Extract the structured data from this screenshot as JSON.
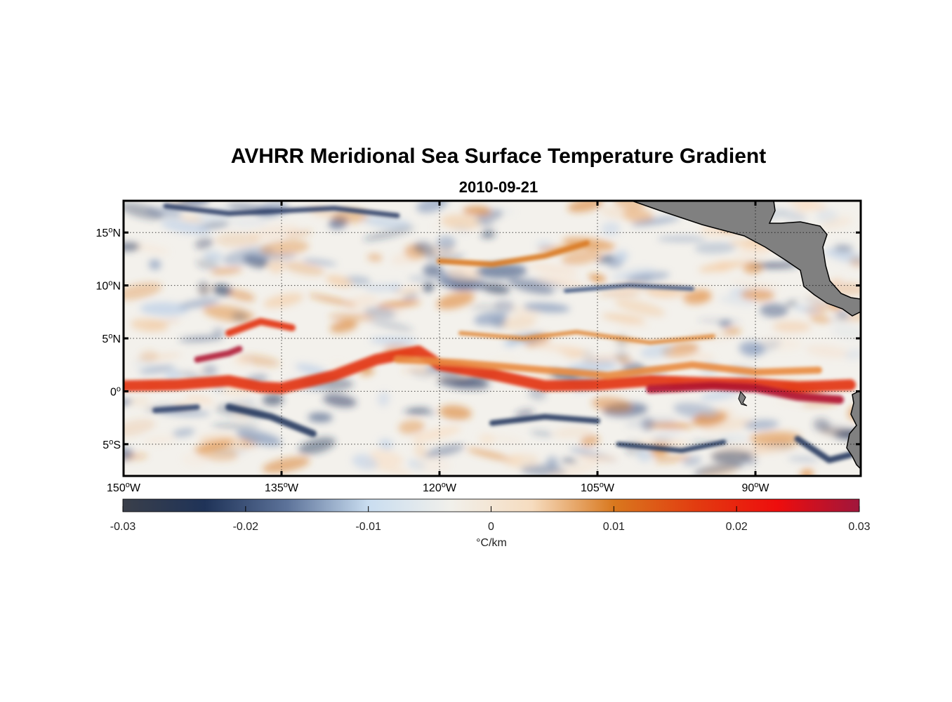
{
  "title": "AVHRR Meridional Sea Surface Temperature Gradient",
  "subtitle": "2010-09-21",
  "map": {
    "lon_range": [
      -150,
      -80
    ],
    "lat_range": [
      -8,
      18
    ],
    "grid": true,
    "land_color": "#808080",
    "lat_ticks": [
      {
        "value": 15,
        "deg": "15",
        "hemi": "N"
      },
      {
        "value": 10,
        "deg": "10",
        "hemi": "N"
      },
      {
        "value": 5,
        "deg": "5",
        "hemi": "N"
      },
      {
        "value": 0,
        "deg": "0",
        "hemi": ""
      },
      {
        "value": -5,
        "deg": "5",
        "hemi": "S"
      }
    ],
    "lon_ticks": [
      {
        "value": -150,
        "deg": "150",
        "hemi": "W"
      },
      {
        "value": -135,
        "deg": "135",
        "hemi": "W"
      },
      {
        "value": -120,
        "deg": "120",
        "hemi": "W"
      },
      {
        "value": -105,
        "deg": "105",
        "hemi": "W"
      },
      {
        "value": -90,
        "deg": "90",
        "hemi": "W"
      }
    ]
  },
  "colorbar": {
    "range": [
      -0.03,
      0.03
    ],
    "ticks": [
      "-0.03",
      "-0.02",
      "-0.01",
      "0",
      "0.01",
      "0.02",
      "0.03"
    ],
    "units": "°C/km",
    "colormap": [
      "#3a3f4a",
      "#1f3358",
      "#5c7299",
      "#c9ddf0",
      "#f1f0eb",
      "#f6dcbf",
      "#d9781e",
      "#e23c10",
      "#ee0d0d",
      "#a0163c"
    ]
  }
}
